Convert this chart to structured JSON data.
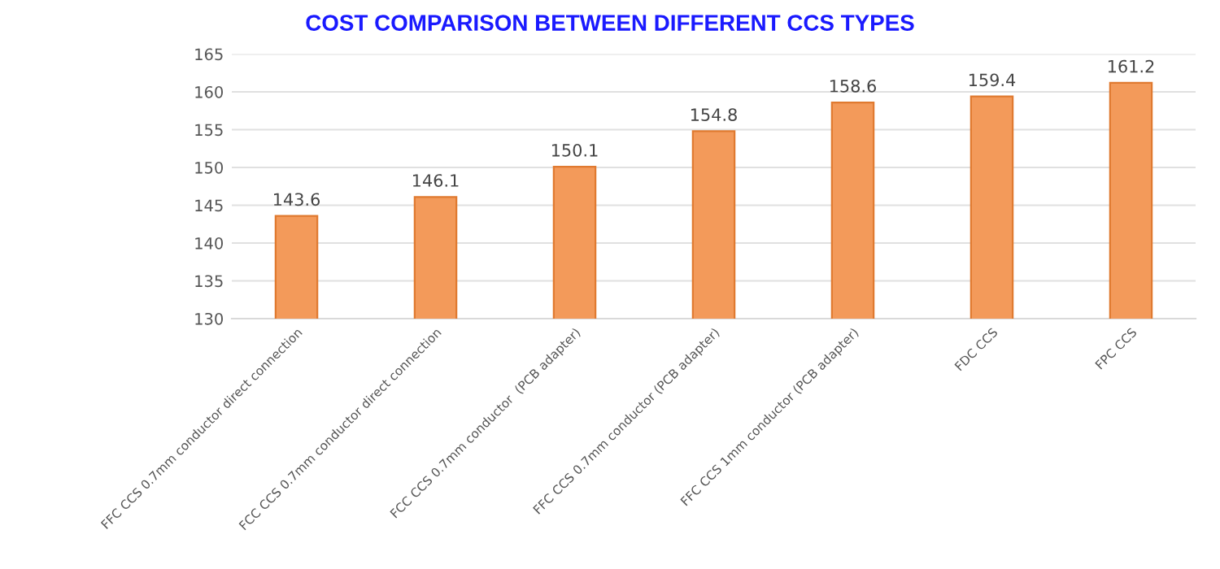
{
  "chart_data": {
    "type": "bar",
    "title": "COST COMPARISON BETWEEN DIFFERENT CCS TYPES",
    "categories": [
      "FFC CCS 0.7mm conductor direct connection",
      "FCC CCS 0.7mm conductor direct connection",
      "FCC CCS 0.7mm conductor  (PCB adapter)",
      "FFC CCS 0.7mm conductor (PCB adapter)",
      "FFC CCS 1mm conductor (PCB adapter)",
      "FDC CCS",
      "FPC CCS"
    ],
    "values": [
      143.6,
      146.1,
      150.1,
      154.8,
      158.6,
      159.4,
      161.2
    ],
    "color": "#f39a5a",
    "ylim": [
      130,
      165
    ],
    "yticks": [
      130,
      135,
      140,
      145,
      150,
      155,
      160,
      165
    ],
    "grid": "y",
    "data_labels": true
  }
}
